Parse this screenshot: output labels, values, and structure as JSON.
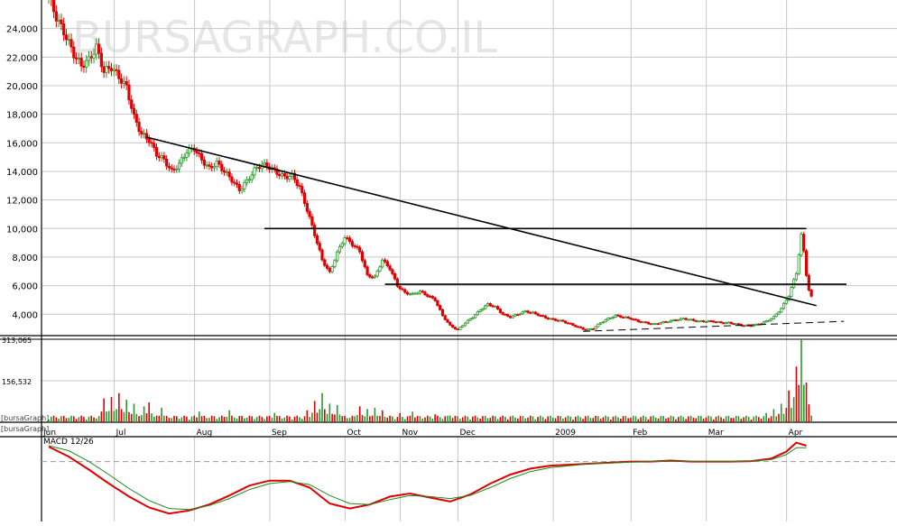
{
  "watermark": "BURSAGRAPH.CO.IL",
  "colors": {
    "up": "#2a9a2a",
    "down": "#e00000",
    "grid": "#c8c8c8",
    "line": "#000000",
    "macd": "#e00000",
    "signal": "#1e8a1e"
  },
  "volume_side_label_1": "[bursaGraph]",
  "volume_side_label_2": "[bursaGraph]",
  "macd_label": "MACD 12/26",
  "chart_data": [
    {
      "type": "candlestick",
      "series_name": "price",
      "ylim": [
        2500,
        26000
      ],
      "y_ticks": [
        4000,
        6000,
        8000,
        10000,
        12000,
        14000,
        16000,
        18000,
        20000,
        22000,
        24000
      ],
      "y_tick_labels": [
        "4,000",
        "6,000",
        "8,000",
        "10,000",
        "12,000",
        "14,000",
        "16,000",
        "18,000",
        "20,000",
        "22,000",
        "24,000"
      ],
      "x_labels": [
        "Jun",
        "Jul",
        "Aug",
        "Sep",
        "Oct",
        "Nov",
        "Dec",
        "2009",
        "Feb",
        "Mar",
        "Apr"
      ],
      "grid": true,
      "close_path": [
        [
          0,
          26200
        ],
        [
          3,
          24800
        ],
        [
          7,
          23400
        ],
        [
          10,
          22200
        ],
        [
          13,
          21400
        ],
        [
          16,
          21800
        ],
        [
          19,
          22700
        ],
        [
          22,
          21000
        ],
        [
          25,
          21300
        ],
        [
          28,
          20600
        ],
        [
          31,
          19900
        ],
        [
          34,
          17800
        ],
        [
          37,
          16600
        ],
        [
          40,
          16200
        ],
        [
          43,
          15200
        ],
        [
          46,
          14800
        ],
        [
          49,
          14000
        ],
        [
          52,
          14500
        ],
        [
          55,
          15400
        ],
        [
          58,
          15600
        ],
        [
          61,
          14800
        ],
        [
          64,
          14200
        ],
        [
          67,
          14600
        ],
        [
          70,
          14000
        ],
        [
          73,
          13400
        ],
        [
          76,
          12700
        ],
        [
          79,
          13300
        ],
        [
          82,
          14100
        ],
        [
          85,
          14500
        ],
        [
          88,
          14300
        ],
        [
          91,
          13900
        ],
        [
          94,
          13600
        ],
        [
          97,
          13700
        ],
        [
          100,
          12900
        ],
        [
          103,
          11300
        ],
        [
          106,
          9600
        ],
        [
          109,
          7800
        ],
        [
          112,
          6900
        ],
        [
          115,
          8300
        ],
        [
          118,
          9400
        ],
        [
          121,
          8900
        ],
        [
          124,
          8400
        ],
        [
          127,
          6700
        ],
        [
          130,
          6600
        ],
        [
          133,
          7800
        ],
        [
          136,
          7200
        ],
        [
          139,
          6000
        ],
        [
          142,
          5500
        ],
        [
          145,
          5400
        ],
        [
          148,
          5600
        ],
        [
          151,
          5300
        ],
        [
          154,
          5000
        ],
        [
          157,
          3900
        ],
        [
          160,
          3200
        ],
        [
          163,
          2900
        ],
        [
          166,
          3400
        ],
        [
          169,
          3800
        ],
        [
          172,
          4300
        ],
        [
          175,
          4700
        ],
        [
          178,
          4500
        ],
        [
          181,
          4000
        ],
        [
          184,
          3800
        ],
        [
          187,
          4000
        ],
        [
          190,
          4200
        ],
        [
          193,
          4100
        ],
        [
          196,
          3900
        ],
        [
          199,
          3700
        ],
        [
          202,
          3600
        ],
        [
          205,
          3500
        ],
        [
          208,
          3300
        ],
        [
          211,
          3100
        ],
        [
          214,
          2900
        ],
        [
          217,
          3000
        ],
        [
          220,
          3400
        ],
        [
          223,
          3700
        ],
        [
          226,
          3900
        ],
        [
          229,
          3800
        ],
        [
          232,
          3700
        ],
        [
          235,
          3500
        ],
        [
          238,
          3400
        ],
        [
          241,
          3300
        ],
        [
          244,
          3400
        ],
        [
          247,
          3500
        ],
        [
          250,
          3600
        ],
        [
          253,
          3700
        ],
        [
          256,
          3600
        ],
        [
          259,
          3500
        ],
        [
          262,
          3500
        ],
        [
          265,
          3500
        ],
        [
          268,
          3400
        ],
        [
          271,
          3400
        ],
        [
          274,
          3300
        ],
        [
          277,
          3200
        ],
        [
          280,
          3200
        ],
        [
          283,
          3300
        ],
        [
          286,
          3500
        ],
        [
          289,
          3800
        ],
        [
          292,
          4400
        ],
        [
          295,
          5300
        ],
        [
          298,
          6900
        ],
        [
          300,
          9500
        ],
        [
          301,
          8400
        ],
        [
          302,
          6800
        ],
        [
          303,
          5700
        ],
        [
          304,
          5200
        ]
      ],
      "trendlines": [
        {
          "from": [
            39,
            16400
          ],
          "to": [
            306,
            4600
          ],
          "style": "solid"
        },
        {
          "from": [
            86,
            10000
          ],
          "to": [
            302,
            10000
          ],
          "style": "solid"
        },
        {
          "from": [
            134,
            6100
          ],
          "to": [
            318,
            6100
          ],
          "style": "solid"
        },
        {
          "from": [
            213,
            2800
          ],
          "to": [
            317,
            3500
          ],
          "style": "dashed"
        }
      ]
    },
    {
      "type": "bar",
      "series_name": "volume",
      "ylim": [
        0,
        313065
      ],
      "y_ticks": [
        156532,
        313065
      ],
      "y_tick_labels": [
        "156,532",
        "313,065"
      ],
      "base_level": 10000,
      "peaks": [
        [
          22,
          90000
        ],
        [
          25,
          95000
        ],
        [
          28,
          110000
        ],
        [
          31,
          85000
        ],
        [
          34,
          70000
        ],
        [
          38,
          60000
        ],
        [
          40,
          75000
        ],
        [
          45,
          55000
        ],
        [
          60,
          40000
        ],
        [
          72,
          45000
        ],
        [
          90,
          35000
        ],
        [
          103,
          45000
        ],
        [
          106,
          80000
        ],
        [
          109,
          110000
        ],
        [
          112,
          70000
        ],
        [
          115,
          65000
        ],
        [
          124,
          60000
        ],
        [
          127,
          50000
        ],
        [
          130,
          55000
        ],
        [
          133,
          45000
        ],
        [
          140,
          35000
        ],
        [
          145,
          40000
        ],
        [
          154,
          30000
        ],
        [
          160,
          25000
        ],
        [
          170,
          20000
        ],
        [
          283,
          20000
        ],
        [
          286,
          35000
        ],
        [
          289,
          50000
        ],
        [
          292,
          70000
        ],
        [
          295,
          120000
        ],
        [
          298,
          210000
        ],
        [
          300,
          313065
        ],
        [
          302,
          150000
        ]
      ]
    },
    {
      "type": "line",
      "series_name": "MACD 12/26",
      "ylim": [
        -6000,
        2500
      ],
      "series": [
        {
          "name": "MACD",
          "color_key": "macd",
          "points": [
            [
              0,
              1500
            ],
            [
              8,
              500
            ],
            [
              16,
              -800
            ],
            [
              24,
              -2200
            ],
            [
              32,
              -3500
            ],
            [
              40,
              -4600
            ],
            [
              48,
              -5200
            ],
            [
              56,
              -4900
            ],
            [
              64,
              -4300
            ],
            [
              72,
              -3400
            ],
            [
              80,
              -2400
            ],
            [
              88,
              -1900
            ],
            [
              96,
              -1900
            ],
            [
              104,
              -2600
            ],
            [
              112,
              -4200
            ],
            [
              120,
              -4700
            ],
            [
              128,
              -4300
            ],
            [
              136,
              -3500
            ],
            [
              144,
              -3200
            ],
            [
              152,
              -3600
            ],
            [
              160,
              -4000
            ],
            [
              168,
              -3300
            ],
            [
              176,
              -2200
            ],
            [
              184,
              -1300
            ],
            [
              192,
              -700
            ],
            [
              200,
              -400
            ],
            [
              208,
              -300
            ],
            [
              216,
              -200
            ],
            [
              224,
              -100
            ],
            [
              232,
              0
            ],
            [
              240,
              0
            ],
            [
              248,
              100
            ],
            [
              256,
              0
            ],
            [
              264,
              0
            ],
            [
              272,
              0
            ],
            [
              280,
              50
            ],
            [
              288,
              300
            ],
            [
              294,
              1000
            ],
            [
              298,
              1900
            ],
            [
              302,
              1600
            ]
          ]
        },
        {
          "name": "Signal",
          "color_key": "signal",
          "points": [
            [
              0,
              1600
            ],
            [
              8,
              1100
            ],
            [
              16,
              0
            ],
            [
              24,
              -1300
            ],
            [
              32,
              -2700
            ],
            [
              40,
              -3900
            ],
            [
              48,
              -4700
            ],
            [
              56,
              -4800
            ],
            [
              64,
              -4400
            ],
            [
              72,
              -3700
            ],
            [
              80,
              -2800
            ],
            [
              88,
              -2200
            ],
            [
              96,
              -2000
            ],
            [
              104,
              -2300
            ],
            [
              112,
              -3400
            ],
            [
              120,
              -4200
            ],
            [
              128,
              -4300
            ],
            [
              136,
              -3800
            ],
            [
              144,
              -3400
            ],
            [
              152,
              -3500
            ],
            [
              160,
              -3700
            ],
            [
              168,
              -3400
            ],
            [
              176,
              -2600
            ],
            [
              184,
              -1700
            ],
            [
              192,
              -1000
            ],
            [
              200,
              -600
            ],
            [
              208,
              -400
            ],
            [
              216,
              -200
            ],
            [
              224,
              -150
            ],
            [
              232,
              -50
            ],
            [
              240,
              0
            ],
            [
              248,
              30
            ],
            [
              256,
              0
            ],
            [
              264,
              0
            ],
            [
              272,
              0
            ],
            [
              280,
              30
            ],
            [
              288,
              200
            ],
            [
              294,
              700
            ],
            [
              298,
              1400
            ],
            [
              302,
              1400
            ]
          ]
        }
      ]
    }
  ]
}
